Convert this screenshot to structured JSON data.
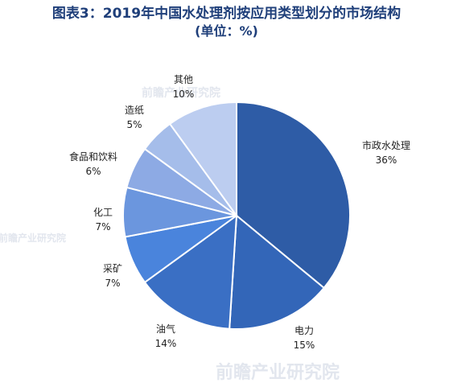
{
  "chart_data": {
    "type": "pie",
    "title": "图表3：2019年中国水处理剂按应用类型划分的市场结构",
    "subtitle": "(单位：%)",
    "slices": [
      {
        "label": "市政水处理",
        "value": 36,
        "value_label": "36%",
        "color": "#2e5ca6"
      },
      {
        "label": "电力",
        "value": 15,
        "value_label": "15%",
        "color": "#3366b8"
      },
      {
        "label": "油气",
        "value": 14,
        "value_label": "14%",
        "color": "#3a6fc4"
      },
      {
        "label": "采矿",
        "value": 7,
        "value_label": "7%",
        "color": "#4a84dc"
      },
      {
        "label": "化工",
        "value": 7,
        "value_label": "7%",
        "color": "#6b96de"
      },
      {
        "label": "食品和饮料",
        "value": 6,
        "value_label": "6%",
        "color": "#8daae4"
      },
      {
        "label": "造纸",
        "value": 5,
        "value_label": "5%",
        "color": "#a5bdea"
      },
      {
        "label": "其他",
        "value": 10,
        "value_label": "10%",
        "color": "#bccdf0"
      }
    ]
  },
  "watermark": {
    "text": "前瞻产业研究院"
  }
}
